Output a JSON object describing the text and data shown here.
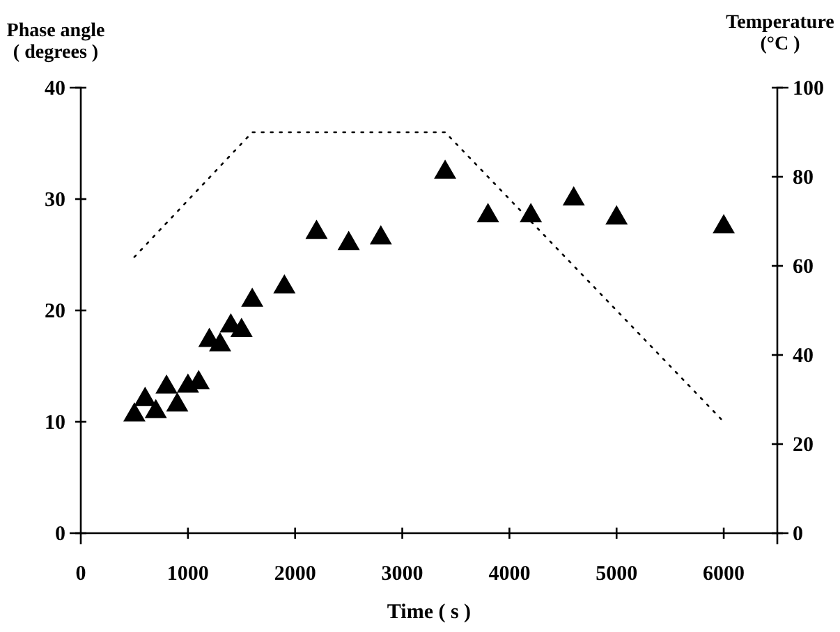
{
  "chart_data": {
    "type": "scatter",
    "xlabel": "Time ( s )",
    "ylabel": "Phase angle\n( degrees )",
    "y2label": "Temperature\n(°C )",
    "xlim": [
      0,
      6500
    ],
    "xticks": [
      0,
      1000,
      2000,
      3000,
      4000,
      5000,
      6000
    ],
    "ylim": [
      0,
      40
    ],
    "yticks": [
      0,
      10,
      20,
      30,
      40
    ],
    "y2lim": [
      0,
      100
    ],
    "y2ticks": [
      0,
      20,
      40,
      60,
      80,
      100
    ],
    "grid": false,
    "series": [
      {
        "color": "#000000",
        "marker": "triangle",
        "x": [
          500,
          600,
          700,
          800,
          900,
          1000,
          1100,
          1200,
          1300,
          1400,
          1500,
          1600,
          1900,
          2200,
          2500,
          2800,
          3400,
          3800,
          4200,
          4600,
          5000,
          6000
        ],
        "values": [
          10.6,
          12.0,
          10.9,
          13.1,
          11.5,
          13.2,
          13.5,
          17.3,
          16.9,
          18.6,
          18.2,
          20.9,
          22.1,
          27.0,
          26.0,
          26.5,
          32.4,
          28.5,
          28.5,
          30.0,
          28.3,
          27.5
        ]
      },
      {
        "type": "line",
        "axis": "y2",
        "color": "#000000",
        "line_style": "dotted",
        "marker": "none",
        "x": [
          500,
          1600,
          3400,
          6000
        ],
        "values": [
          62,
          90,
          90,
          25
        ]
      }
    ]
  }
}
